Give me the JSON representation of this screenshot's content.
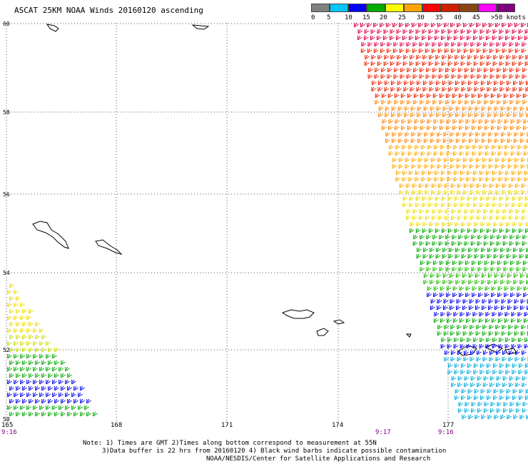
{
  "title": "ASCAT 25KM NOAA Winds 20160120 ascending",
  "legend": {
    "colors": [
      "#808080",
      "#00c8ff",
      "#0000ff",
      "#00aa00",
      "#ffff00",
      "#ffa500",
      "#ff0000",
      "#cc2200",
      "#8b4513",
      "#ff00ff",
      "#800080"
    ],
    "labels": [
      "0",
      "5",
      "10",
      "15",
      "20",
      "25",
      "30",
      "35",
      "40",
      "45",
      ">50 knots"
    ]
  },
  "map": {
    "lat_labels": [
      "60",
      "58",
      "56",
      "54",
      "52",
      "50"
    ],
    "lon_labels": [
      "165",
      "168",
      "171",
      "174",
      "177"
    ],
    "lat_range": [
      50,
      60
    ],
    "lon_range": [
      165,
      179
    ]
  },
  "times": [
    "9:16",
    "9:17",
    "9:16"
  ],
  "note": {
    "line1": "Note: 1) Times are GMT 2)Times along bottom correspond to measurement at 55N",
    "line2": "3)Data buffer is 22 hrs from 20160120 4) Black wind barbs indicate possible contamination",
    "line3": "NOAA/NESDIS/Center for Satellite Applications and Research"
  }
}
